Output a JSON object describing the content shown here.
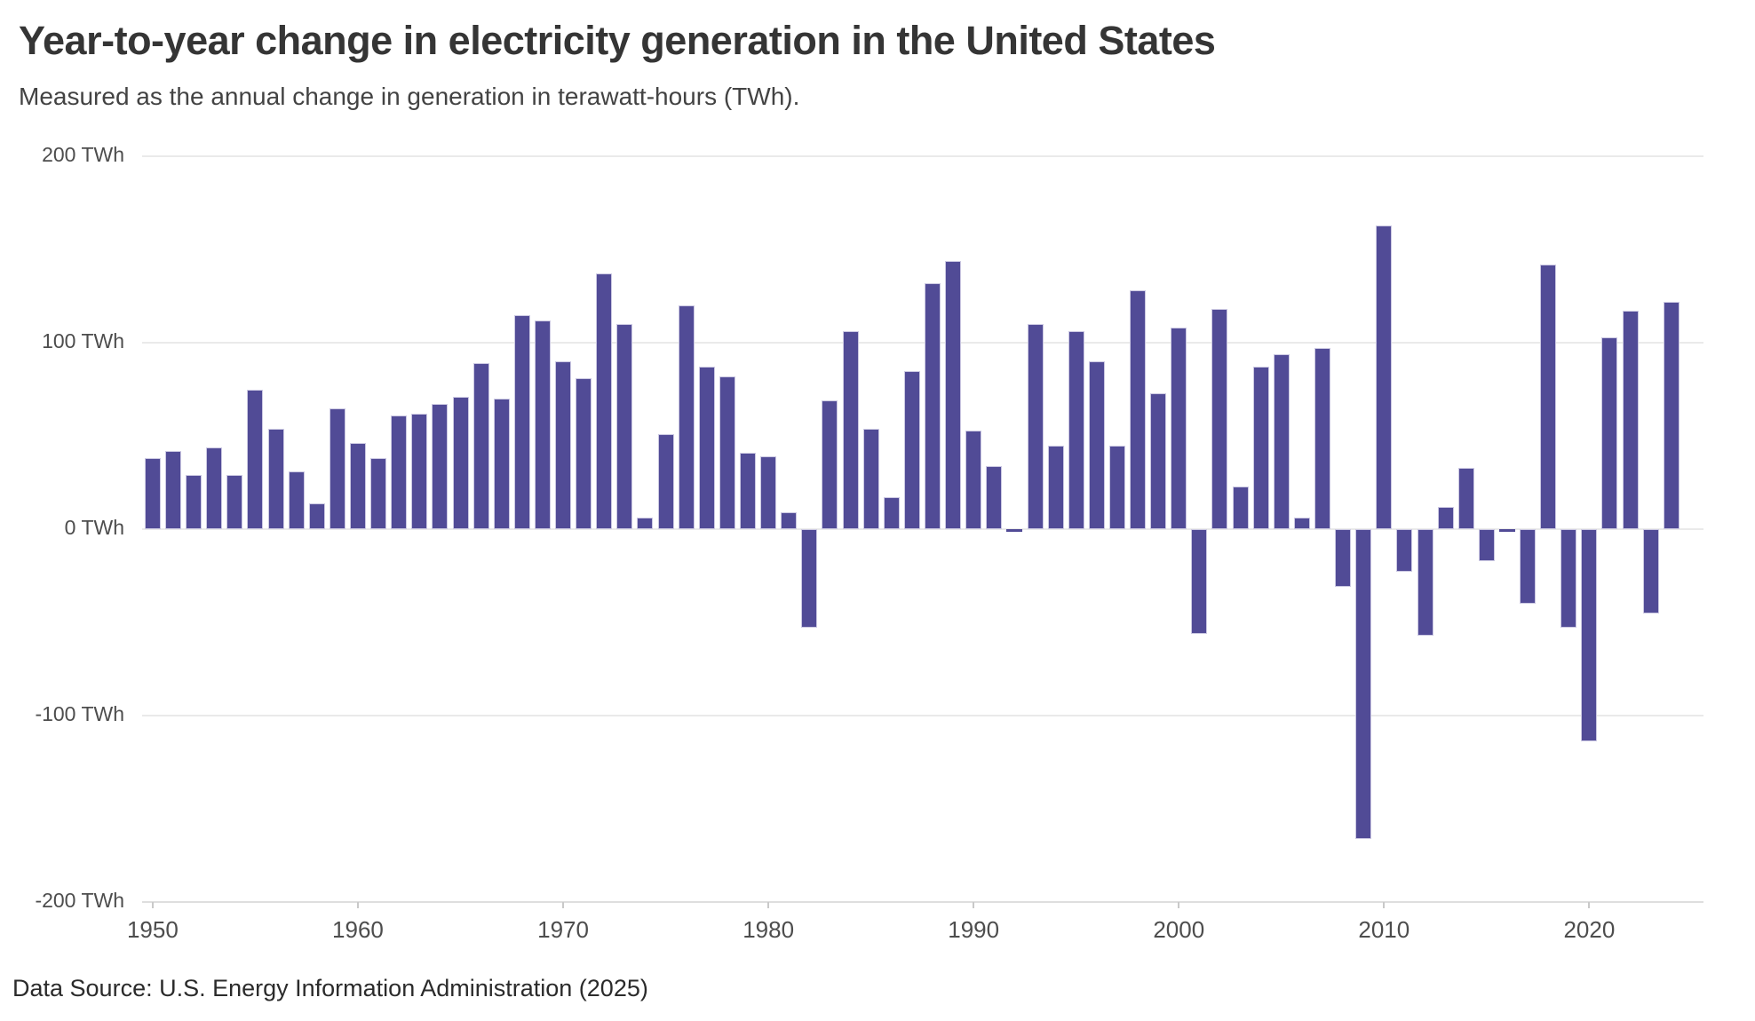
{
  "header": {
    "title": "Year-to-year change in electricity generation in the United States",
    "subtitle": "Measured as the annual change in generation in terawatt-hours (TWh)."
  },
  "footer": {
    "source": "Data Source: U.S. Energy Information Administration (2025)"
  },
  "chart_data": {
    "type": "bar",
    "title": "Year-to-year change in electricity generation in the United States",
    "subtitle": "Measured as the annual change in generation in terawatt-hours (TWh).",
    "unit": "TWh",
    "years": [
      1950,
      1951,
      1952,
      1953,
      1954,
      1955,
      1956,
      1957,
      1958,
      1959,
      1960,
      1961,
      1962,
      1963,
      1964,
      1965,
      1966,
      1967,
      1968,
      1969,
      1970,
      1971,
      1972,
      1973,
      1974,
      1975,
      1976,
      1977,
      1978,
      1979,
      1980,
      1981,
      1982,
      1983,
      1984,
      1985,
      1986,
      1987,
      1988,
      1989,
      1990,
      1991,
      1992,
      1993,
      1994,
      1995,
      1996,
      1997,
      1998,
      1999,
      2000,
      2001,
      2002,
      2003,
      2004,
      2005,
      2006,
      2007,
      2008,
      2009,
      2010,
      2011,
      2012,
      2013,
      2014,
      2015,
      2016,
      2017,
      2018,
      2019,
      2020,
      2021,
      2022,
      2023,
      2024
    ],
    "values": [
      38,
      42,
      29,
      44,
      29,
      75,
      54,
      31,
      14,
      65,
      46,
      38,
      61,
      62,
      67,
      71,
      89,
      70,
      115,
      112,
      90,
      81,
      137,
      110,
      6,
      51,
      120,
      87,
      82,
      41,
      39,
      9,
      -53,
      69,
      106,
      54,
      17,
      85,
      132,
      144,
      53,
      34,
      -1,
      110,
      45,
      106,
      90,
      45,
      128,
      73,
      108,
      -56,
      118,
      23,
      87,
      94,
      6,
      97,
      -31,
      -166,
      163,
      -23,
      -57,
      12,
      33,
      -17,
      -1,
      -40,
      142,
      -53,
      -114,
      103,
      117,
      -45,
      122
    ],
    "y_tick_labels": [
      "200 TWh",
      "100 TWh",
      "0 TWh",
      "-100 TWh",
      "-200 TWh"
    ],
    "y_tick_values": [
      200,
      100,
      0,
      -100,
      -200
    ],
    "x_tick_labels": [
      "1950",
      "1960",
      "1970",
      "1980",
      "1990",
      "2000",
      "2010",
      "2020"
    ],
    "x_tick_years": [
      1950,
      1960,
      1970,
      1980,
      1990,
      2000,
      2010,
      2020
    ],
    "ylim": [
      -200,
      200
    ],
    "grid": true,
    "legend": "none",
    "colors": {
      "bar_fill": "#514B96",
      "bar_edge": "#CBC8E2",
      "gridline": "#EAEAEA",
      "axis_line": "#DEDEDE",
      "tick": "#C9C9C9",
      "axis_text": "#4D4D4D",
      "title_text": "#353535"
    }
  }
}
